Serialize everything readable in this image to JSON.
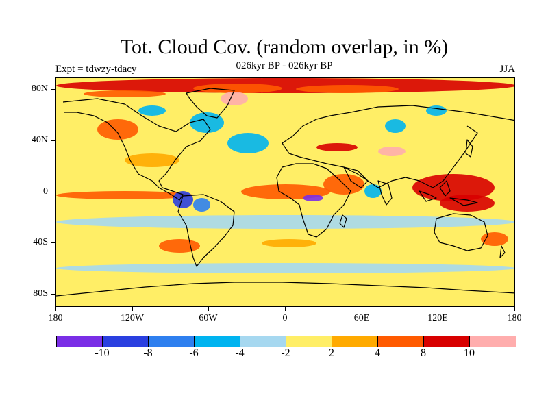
{
  "title": "Tot. Cloud Cov. (random overlap, in %)",
  "subtitle": "026kyr BP - 026kyr BP",
  "left_note": "Expt = tdwzy-tdacy",
  "right_note": "JJA",
  "axes": {
    "y_labels": [
      "80N",
      "40N",
      "0",
      "40S",
      "80S"
    ],
    "x_labels": [
      "180",
      "120W",
      "60W",
      "0",
      "60E",
      "120E",
      "180"
    ]
  },
  "colorbar": {
    "colors": [
      "#7a2ee6",
      "#2a3fe0",
      "#2e7fef",
      "#00b4f0",
      "#a6d8f0",
      "#ffee66",
      "#ffaa00",
      "#ff5a00",
      "#d80000",
      "#ffadad"
    ],
    "labels": [
      "-10",
      "-8",
      "-6",
      "-4",
      "-2",
      "2",
      "4",
      "8",
      "10"
    ]
  }
}
